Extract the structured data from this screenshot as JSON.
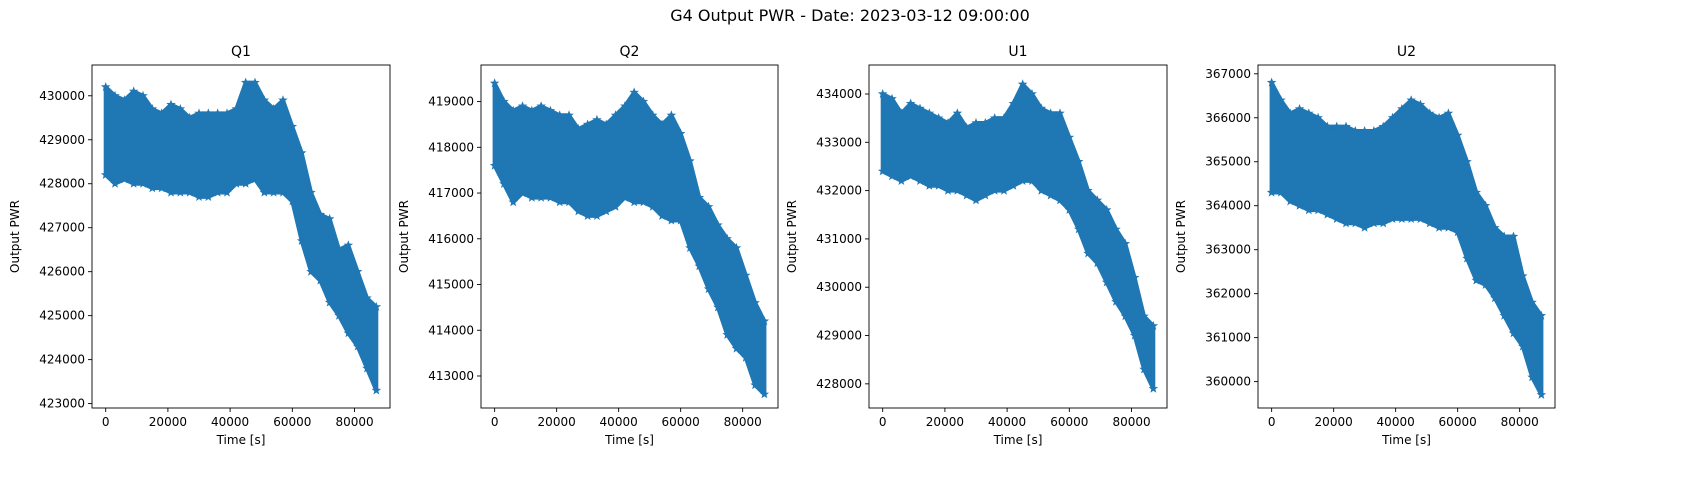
{
  "figure": {
    "title": "G4 Output PWR - Date: 2023-03-12 09:00:00"
  },
  "colors": {
    "series": "#1f77b4",
    "axis": "#000000"
  },
  "chart_data": [
    {
      "type": "scatter",
      "title": "Q1",
      "xlabel": "Time [s]",
      "ylabel": "Output PWR",
      "xlim": [
        -4400,
        91400
      ],
      "ylim": [
        422900,
        430700
      ],
      "xticks": [
        0,
        20000,
        40000,
        60000,
        80000
      ],
      "yticks": [
        423000,
        424000,
        425000,
        426000,
        427000,
        428000,
        429000,
        430000
      ],
      "grid": false,
      "marker": "star",
      "series": [
        {
          "x": [
            0,
            3000,
            6000,
            9000,
            12000,
            15000,
            18000,
            21000,
            24000,
            27000,
            30000,
            33000,
            36000,
            39000,
            42000,
            45000,
            48000,
            51000,
            54000,
            57000,
            60000,
            63000,
            66000,
            69000,
            72000,
            75000,
            78000,
            81000,
            84000,
            87000
          ],
          "low": [
            428200,
            428000,
            428100,
            428000,
            428000,
            427900,
            427900,
            427800,
            427800,
            427800,
            427700,
            427700,
            427800,
            427800,
            428000,
            428000,
            428100,
            427800,
            427800,
            427800,
            427600,
            426700,
            426000,
            425800,
            425300,
            425000,
            424600,
            424300,
            423800,
            423300
          ],
          "high": [
            430200,
            430000,
            429900,
            430100,
            430000,
            429700,
            429600,
            429800,
            429700,
            429500,
            429600,
            429600,
            429600,
            429600,
            429700,
            430300,
            430300,
            429900,
            429700,
            429900,
            429300,
            428700,
            427800,
            427300,
            427200,
            426500,
            426600,
            426000,
            425400,
            425200
          ]
        }
      ]
    },
    {
      "type": "scatter",
      "title": "Q2",
      "xlabel": "Time [s]",
      "ylabel": "Output PWR",
      "xlim": [
        -4400,
        91400
      ],
      "ylim": [
        412300,
        419800
      ],
      "xticks": [
        0,
        20000,
        40000,
        60000,
        80000
      ],
      "yticks": [
        413000,
        414000,
        415000,
        416000,
        417000,
        418000,
        419000
      ],
      "grid": false,
      "marker": "star",
      "series": [
        {
          "x": [
            0,
            3000,
            6000,
            9000,
            12000,
            15000,
            18000,
            21000,
            24000,
            27000,
            30000,
            33000,
            36000,
            39000,
            42000,
            45000,
            48000,
            51000,
            54000,
            57000,
            60000,
            63000,
            66000,
            69000,
            72000,
            75000,
            78000,
            81000,
            84000,
            87000
          ],
          "low": [
            417600,
            417200,
            416800,
            417000,
            416900,
            416900,
            416900,
            416800,
            416800,
            416600,
            416500,
            416500,
            416600,
            416700,
            416900,
            416800,
            416800,
            416700,
            416500,
            416400,
            416400,
            415800,
            415400,
            414900,
            414500,
            413900,
            413600,
            413400,
            412800,
            412600
          ],
          "high": [
            419400,
            419000,
            418800,
            418900,
            418800,
            418900,
            418800,
            418700,
            418700,
            418400,
            418500,
            418600,
            418500,
            418700,
            418900,
            419200,
            419000,
            418700,
            418500,
            418700,
            418300,
            417700,
            416900,
            416700,
            416300,
            416000,
            415800,
            415200,
            414600,
            414200
          ]
        }
      ]
    },
    {
      "type": "scatter",
      "title": "U1",
      "xlabel": "Time [s]",
      "ylabel": "Output PWR",
      "xlim": [
        -4400,
        91400
      ],
      "ylim": [
        427500,
        434600
      ],
      "xticks": [
        0,
        20000,
        40000,
        60000,
        80000
      ],
      "yticks": [
        428000,
        429000,
        430000,
        431000,
        432000,
        433000,
        434000
      ],
      "grid": false,
      "marker": "star",
      "series": [
        {
          "x": [
            0,
            3000,
            6000,
            9000,
            12000,
            15000,
            18000,
            21000,
            24000,
            27000,
            30000,
            33000,
            36000,
            39000,
            42000,
            45000,
            48000,
            51000,
            54000,
            57000,
            60000,
            63000,
            66000,
            69000,
            72000,
            75000,
            78000,
            81000,
            84000,
            87000
          ],
          "low": [
            432400,
            432300,
            432200,
            432300,
            432200,
            432100,
            432100,
            432000,
            432000,
            431900,
            431800,
            431900,
            432000,
            432000,
            432100,
            432200,
            432200,
            432000,
            431900,
            431800,
            431600,
            431200,
            430700,
            430500,
            430100,
            429700,
            429400,
            429000,
            428300,
            427900
          ],
          "high": [
            434000,
            433900,
            433600,
            433800,
            433700,
            433600,
            433500,
            433400,
            433600,
            433300,
            433400,
            433400,
            433500,
            433500,
            433800,
            434200,
            434000,
            433700,
            433600,
            433600,
            433100,
            432600,
            432000,
            431800,
            431600,
            431200,
            430900,
            430200,
            429400,
            429200
          ]
        }
      ]
    },
    {
      "type": "scatter",
      "title": "U2",
      "xlabel": "Time [s]",
      "ylabel": "Output PWR",
      "xlim": [
        -4400,
        91400
      ],
      "ylim": [
        359400,
        367200
      ],
      "xticks": [
        0,
        20000,
        40000,
        60000,
        80000
      ],
      "yticks": [
        360000,
        361000,
        362000,
        363000,
        364000,
        365000,
        366000,
        367000
      ],
      "grid": false,
      "marker": "star",
      "series": [
        {
          "x": [
            0,
            3000,
            6000,
            9000,
            12000,
            15000,
            18000,
            21000,
            24000,
            27000,
            30000,
            33000,
            36000,
            39000,
            42000,
            45000,
            48000,
            51000,
            54000,
            57000,
            60000,
            63000,
            66000,
            69000,
            72000,
            75000,
            78000,
            81000,
            84000,
            87000
          ],
          "low": [
            364300,
            364300,
            364100,
            364000,
            363900,
            363900,
            363800,
            363700,
            363600,
            363600,
            363500,
            363600,
            363600,
            363700,
            363700,
            363700,
            363700,
            363600,
            363500,
            363500,
            363400,
            362800,
            362300,
            362200,
            361900,
            361500,
            361100,
            360800,
            360100,
            359700
          ],
          "high": [
            366800,
            366400,
            366100,
            366200,
            366100,
            366000,
            365800,
            365800,
            365800,
            365700,
            365700,
            365700,
            365800,
            366000,
            366200,
            366400,
            366300,
            366100,
            366000,
            366100,
            365600,
            365000,
            364300,
            364000,
            363500,
            363300,
            363300,
            362400,
            361800,
            361500
          ]
        }
      ]
    }
  ]
}
